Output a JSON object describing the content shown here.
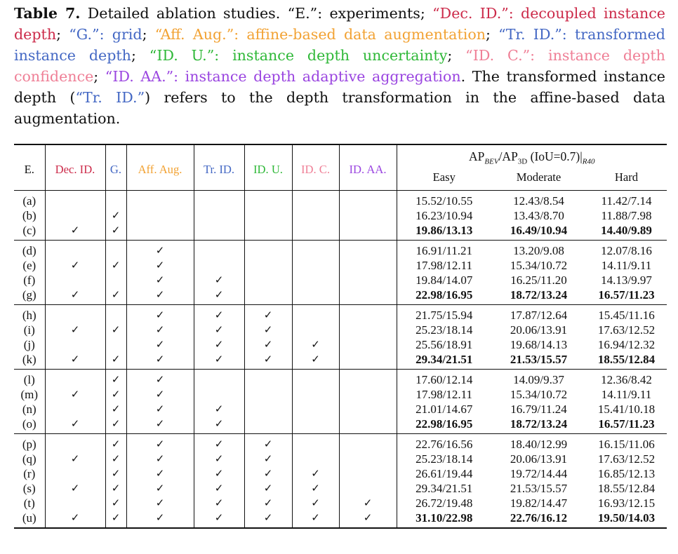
{
  "caption": {
    "label": "Table 7.",
    "intro": " Detailed ablation studies. ",
    "e_def": "“E.”: experiments",
    "dec_def": "“Dec. ID.”: decoupled instance depth",
    "g_def": "“G.”: grid",
    "aff_def": "“Aff. Aug.”: affine-based data augmentation",
    "tr_def": "“Tr. ID.”: transformed instance depth",
    "idu_def": "“ID. U.”: instance depth uncertainty",
    "idc_def": "“ID. C.”: instance depth confidence",
    "aa_def": "“ID. AA.”: instance depth adaptive aggregation",
    "note_pre": ". The transformed instance depth (",
    "note_term": "“Tr. ID.”",
    "note_post": ") refers to the depth transformation in the affine-based data augmentation."
  },
  "colors": {
    "dec": "#cc2b4a",
    "g": "#4468c4",
    "aff": "#f2a233",
    "tr": "#4468c4",
    "idu": "#2fb838",
    "idc": "#ef7f96",
    "aa": "#9a45e0"
  },
  "table": {
    "headers": {
      "e": "E.",
      "dec": "Dec. ID.",
      "g": "G.",
      "aff": "Aff. Aug.",
      "tr": "Tr. ID.",
      "idu": "ID. U.",
      "idc": "ID. C.",
      "aa": "ID. AA.",
      "metric_ap": "AP",
      "metric_bev": "BEV",
      "metric_slash": "/AP",
      "metric_3d": "3D",
      "metric_iou": " (IoU=0.7)|",
      "metric_r40": "R40",
      "easy": "Easy",
      "moderate": "Moderate",
      "hard": "Hard"
    },
    "check_symbol": "✓",
    "groups": [
      {
        "rows": [
          {
            "exp": "(a)",
            "dec": false,
            "g": false,
            "aff": false,
            "tr": false,
            "idu": false,
            "idc": false,
            "aa": false,
            "easy": "15.52/10.55",
            "moderate": "12.43/8.54",
            "hard": "11.42/7.14",
            "bold": false
          },
          {
            "exp": "(b)",
            "dec": false,
            "g": true,
            "aff": false,
            "tr": false,
            "idu": false,
            "idc": false,
            "aa": false,
            "easy": "16.23/10.94",
            "moderate": "13.43/8.70",
            "hard": "11.88/7.98",
            "bold": false
          },
          {
            "exp": "(c)",
            "dec": true,
            "g": true,
            "aff": false,
            "tr": false,
            "idu": false,
            "idc": false,
            "aa": false,
            "easy": "19.86/13.13",
            "moderate": "16.49/10.94",
            "hard": "14.40/9.89",
            "bold": true
          }
        ]
      },
      {
        "rows": [
          {
            "exp": "(d)",
            "dec": false,
            "g": false,
            "aff": true,
            "tr": false,
            "idu": false,
            "idc": false,
            "aa": false,
            "easy": "16.91/11.21",
            "moderate": "13.20/9.08",
            "hard": "12.07/8.16",
            "bold": false
          },
          {
            "exp": "(e)",
            "dec": true,
            "g": true,
            "aff": true,
            "tr": false,
            "idu": false,
            "idc": false,
            "aa": false,
            "easy": "17.98/12.11",
            "moderate": "15.34/10.72",
            "hard": "14.11/9.11",
            "bold": false
          },
          {
            "exp": "(f)",
            "dec": false,
            "g": false,
            "aff": true,
            "tr": true,
            "idu": false,
            "idc": false,
            "aa": false,
            "easy": "19.84/14.07",
            "moderate": "16.25/11.20",
            "hard": "14.13/9.97",
            "bold": false
          },
          {
            "exp": "(g)",
            "dec": true,
            "g": true,
            "aff": true,
            "tr": true,
            "idu": false,
            "idc": false,
            "aa": false,
            "easy": "22.98/16.95",
            "moderate": "18.72/13.24",
            "hard": "16.57/11.23",
            "bold": true
          }
        ]
      },
      {
        "rows": [
          {
            "exp": "(h)",
            "dec": false,
            "g": false,
            "aff": true,
            "tr": true,
            "idu": true,
            "idc": false,
            "aa": false,
            "easy": "21.75/15.94",
            "moderate": "17.87/12.64",
            "hard": "15.45/11.16",
            "bold": false
          },
          {
            "exp": "(i)",
            "dec": true,
            "g": true,
            "aff": true,
            "tr": true,
            "idu": true,
            "idc": false,
            "aa": false,
            "easy": "25.23/18.14",
            "moderate": "20.06/13.91",
            "hard": "17.63/12.52",
            "bold": false
          },
          {
            "exp": "(j)",
            "dec": false,
            "g": false,
            "aff": true,
            "tr": true,
            "idu": true,
            "idc": true,
            "aa": false,
            "easy": "25.56/18.91",
            "moderate": "19.68/14.13",
            "hard": "16.94/12.32",
            "bold": false
          },
          {
            "exp": "(k)",
            "dec": true,
            "g": true,
            "aff": true,
            "tr": true,
            "idu": true,
            "idc": true,
            "aa": false,
            "easy": "29.34/21.51",
            "moderate": "21.53/15.57",
            "hard": "18.55/12.84",
            "bold": true
          }
        ]
      },
      {
        "rows": [
          {
            "exp": "(l)",
            "dec": false,
            "g": true,
            "aff": true,
            "tr": false,
            "idu": false,
            "idc": false,
            "aa": false,
            "easy": "17.60/12.14",
            "moderate": "14.09/9.37",
            "hard": "12.36/8.42",
            "bold": false
          },
          {
            "exp": "(m)",
            "dec": true,
            "g": true,
            "aff": true,
            "tr": false,
            "idu": false,
            "idc": false,
            "aa": false,
            "easy": "17.98/12.11",
            "moderate": "15.34/10.72",
            "hard": "14.11/9.11",
            "bold": false
          },
          {
            "exp": "(n)",
            "dec": false,
            "g": true,
            "aff": true,
            "tr": true,
            "idu": false,
            "idc": false,
            "aa": false,
            "easy": "21.01/14.67",
            "moderate": "16.79/11.24",
            "hard": "15.41/10.18",
            "bold": false
          },
          {
            "exp": "(o)",
            "dec": true,
            "g": true,
            "aff": true,
            "tr": true,
            "idu": false,
            "idc": false,
            "aa": false,
            "easy": "22.98/16.95",
            "moderate": "18.72/13.24",
            "hard": "16.57/11.23",
            "bold": true
          }
        ]
      },
      {
        "rows": [
          {
            "exp": "(p)",
            "dec": false,
            "g": true,
            "aff": true,
            "tr": true,
            "idu": true,
            "idc": false,
            "aa": false,
            "easy": "22.76/16.56",
            "moderate": "18.40/12.99",
            "hard": "16.15/11.06",
            "bold": false
          },
          {
            "exp": "(q)",
            "dec": true,
            "g": true,
            "aff": true,
            "tr": true,
            "idu": true,
            "idc": false,
            "aa": false,
            "easy": "25.23/18.14",
            "moderate": "20.06/13.91",
            "hard": "17.63/12.52",
            "bold": false
          },
          {
            "exp": "(r)",
            "dec": false,
            "g": true,
            "aff": true,
            "tr": true,
            "idu": true,
            "idc": true,
            "aa": false,
            "easy": "26.61/19.44",
            "moderate": "19.72/14.44",
            "hard": "16.85/12.13",
            "bold": false
          },
          {
            "exp": "(s)",
            "dec": true,
            "g": true,
            "aff": true,
            "tr": true,
            "idu": true,
            "idc": true,
            "aa": false,
            "easy": "29.34/21.51",
            "moderate": "21.53/15.57",
            "hard": "18.55/12.84",
            "bold": false
          },
          {
            "exp": "(t)",
            "dec": false,
            "g": true,
            "aff": true,
            "tr": true,
            "idu": true,
            "idc": true,
            "aa": true,
            "easy": "26.72/19.48",
            "moderate": "19.82/14.47",
            "hard": "16.93/12.15",
            "bold": false
          },
          {
            "exp": "(u)",
            "dec": true,
            "g": true,
            "aff": true,
            "tr": true,
            "idu": true,
            "idc": true,
            "aa": true,
            "easy": "31.10/22.98",
            "moderate": "22.76/16.12",
            "hard": "19.50/14.03",
            "bold": true
          }
        ]
      }
    ]
  }
}
